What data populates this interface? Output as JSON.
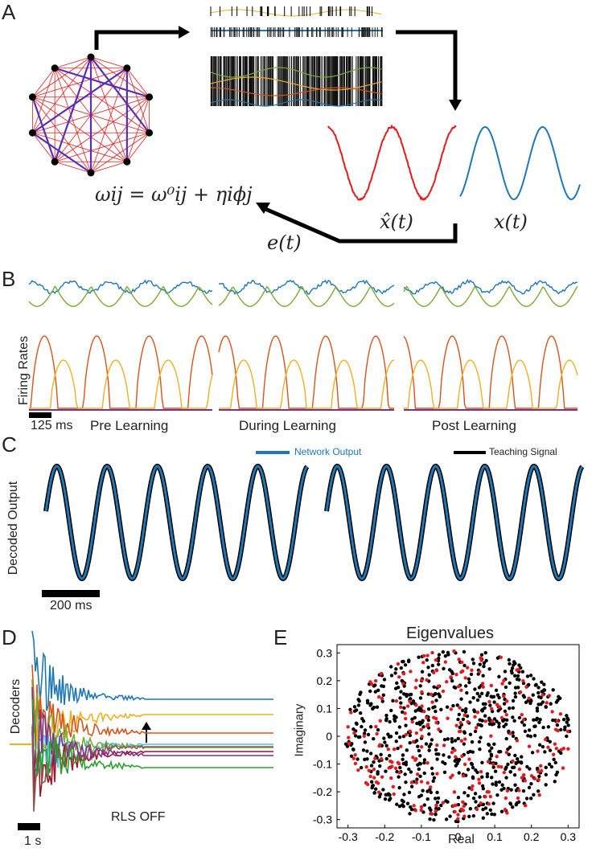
{
  "panel_labels": {
    "a": "A",
    "b": "B",
    "c": "C",
    "d": "D",
    "e": "E"
  },
  "panel_a": {
    "update_rule": "ωij = ω⁰ij + ηiϕj",
    "xhat_label": "x̂(t)",
    "x_label": "x(t)",
    "error_label": "e(t)",
    "colors": {
      "estimate": "#e41a1c",
      "target": "#1f77b4",
      "network_edge": "#e41a1c",
      "strong_edge": "#5a2db4"
    }
  },
  "panel_b": {
    "ylabel": "Firing Rates",
    "scalebar": "125 ms",
    "conditions": [
      "Pre Learning",
      "During Learning",
      "Post Learning"
    ],
    "colors": [
      "#1f77b4",
      "#77ac30",
      "#d95319",
      "#edb120",
      "#7e2f8e"
    ]
  },
  "panel_c": {
    "ylabel": "Decoded Output",
    "scalebar": "200 ms",
    "legend": [
      {
        "name": "Network Output",
        "color": "#1f77b4"
      },
      {
        "name": "Teaching Signal",
        "color": "#000000"
      }
    ]
  },
  "panel_d": {
    "ylabel": "Decoders",
    "scalebar": "1 s",
    "annotation": "RLS OFF"
  },
  "chart_data": [
    {
      "type": "line",
      "title": "",
      "xlabel": "",
      "ylabel": "Decoded Output",
      "series": [
        {
          "name": "Network Output",
          "frequency_hz": 5
        },
        {
          "name": "Teaching Signal",
          "frequency_hz": 5
        }
      ],
      "segments": 2,
      "cycles_per_segment": 5
    },
    {
      "type": "scatter",
      "title": "Eigenvalues",
      "xlabel": "Real",
      "ylabel": "Imaginary",
      "xlim": [
        -0.33,
        0.33
      ],
      "ylim": [
        -0.33,
        0.33
      ],
      "xticks": [
        "-0.3",
        "-0.2",
        "-0.1",
        "0",
        "0.1",
        "0.2",
        "0.3"
      ],
      "yticks": [
        "0.3",
        "0.2",
        "0.1",
        "0",
        "-0.1",
        "-0.2",
        "-0.3"
      ],
      "radius": 0.31,
      "series": [
        {
          "color": "#000000",
          "count": 700
        },
        {
          "color": "#e41a1c",
          "count": 250
        }
      ]
    }
  ]
}
